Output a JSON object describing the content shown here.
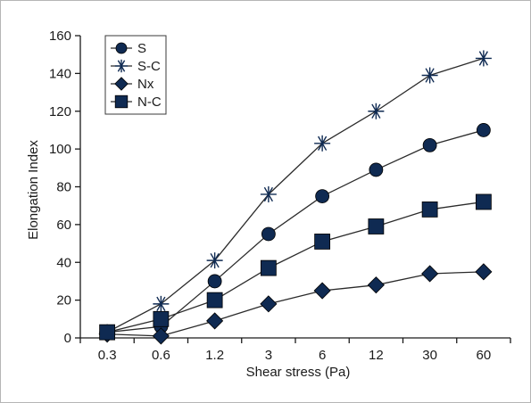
{
  "chart_data": {
    "type": "line",
    "title": "",
    "xlabel": "Shear stress (Pa)",
    "ylabel": "Elongation Index",
    "categories": [
      "0.3",
      "0.6",
      "1.2",
      "3",
      "6",
      "12",
      "30",
      "60"
    ],
    "ylim": [
      0,
      160
    ],
    "yticks": [
      "0",
      "20",
      "40",
      "60",
      "80",
      "100",
      "120",
      "140",
      "160"
    ],
    "grid": false,
    "legend_position": "top-left",
    "series": [
      {
        "name": "S",
        "marker": "circle-icon",
        "values": [
          3,
          6,
          30,
          55,
          75,
          89,
          102,
          110
        ]
      },
      {
        "name": "S-C",
        "marker": "asterisk-icon",
        "values": [
          3,
          18,
          41,
          76,
          103,
          120,
          139,
          148
        ]
      },
      {
        "name": "Nx",
        "marker": "diamond-icon",
        "values": [
          2,
          1,
          9,
          18,
          25,
          28,
          34,
          35
        ]
      },
      {
        "name": "N-C",
        "marker": "square-icon",
        "values": [
          3,
          10,
          20,
          37,
          51,
          59,
          68,
          72
        ]
      }
    ],
    "colors": {
      "marker_fill": "#0f2a52",
      "line": "#2b2b2b",
      "axis": "#1a1a1a"
    }
  }
}
